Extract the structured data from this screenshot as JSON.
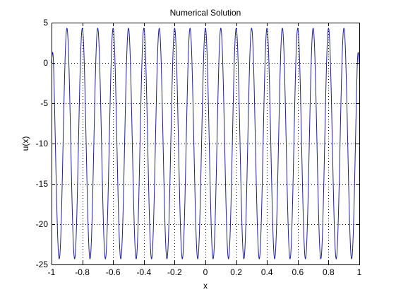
{
  "chart_data": {
    "type": "line",
    "title": "Numerical Solution",
    "xlabel": "x",
    "ylabel": "u(x)",
    "xlim": [
      -1,
      1
    ],
    "ylim": [
      -25,
      5
    ],
    "x_ticks": [
      -1,
      -0.8,
      -0.6,
      -0.4,
      -0.2,
      0,
      0.2,
      0.4,
      0.6,
      0.8,
      1
    ],
    "x_tick_labels": [
      "-1",
      "-0.8",
      "-0.6",
      "-0.4",
      "-0.2",
      "0",
      "0.2",
      "0.4",
      "0.6",
      "0.8",
      "1"
    ],
    "y_ticks": [
      5,
      0,
      -5,
      -10,
      -15,
      -20,
      -25
    ],
    "y_tick_labels": [
      "5",
      "0",
      "-5",
      "-10",
      "-15",
      "-20",
      "-25"
    ],
    "grid": "dotted",
    "series": [
      {
        "color": "#1f1f99",
        "shape": "oscillation",
        "x_start": -1,
        "x_end": 1,
        "start_value": 0,
        "end_value": 0,
        "peak_value": 4.3,
        "trough_value": -24.3,
        "cycles": 20
      }
    ]
  }
}
